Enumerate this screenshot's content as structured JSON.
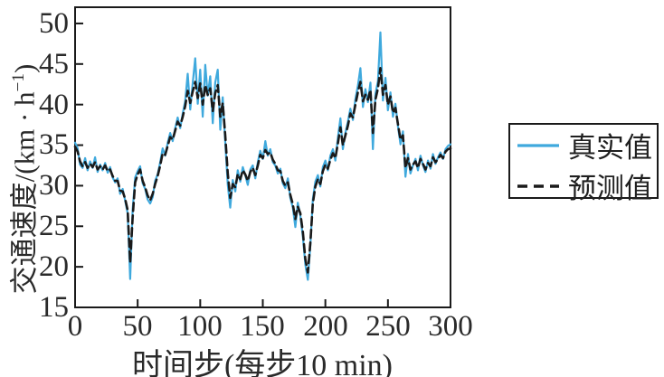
{
  "chart_data": {
    "type": "line",
    "title": "",
    "xlabel": "时间步(每步10 min)",
    "ylabel_main": "交通速度/(km · h",
    "ylabel_sup": "−1",
    "ylabel_close": ")",
    "xlim": [
      0,
      300
    ],
    "ylim": [
      15,
      52
    ],
    "grid": false,
    "legend_position": "right-outside",
    "axis_color": "#1a1a1a",
    "xticks": [
      0,
      50,
      100,
      150,
      200,
      250,
      300
    ],
    "yticks": [
      15,
      20,
      25,
      30,
      35,
      40,
      45,
      50
    ],
    "xtick_labels": [
      "0",
      "50",
      "100",
      "150",
      "200",
      "250",
      "300"
    ],
    "ytick_labels": [
      "15",
      "20",
      "25",
      "30",
      "35",
      "40",
      "45",
      "50"
    ],
    "x_start": 0,
    "x_step": 2,
    "series": [
      {
        "name": "真实值",
        "key": "true-value",
        "color": "#3fa9dd",
        "width": 2.2,
        "dash": "",
        "values": [
          35.3,
          34.6,
          32.6,
          32.2,
          33.4,
          31.9,
          33.0,
          32.2,
          33.5,
          31.7,
          32.6,
          31.9,
          32.8,
          31.6,
          32.3,
          31.0,
          30.4,
          30.9,
          29.0,
          29.6,
          28.2,
          26.6,
          18.5,
          27.0,
          31.0,
          31.8,
          32.4,
          30.3,
          29.6,
          28.3,
          27.8,
          28.6,
          30.6,
          31.4,
          32.9,
          34.6,
          33.7,
          35.3,
          36.5,
          35.5,
          37.1,
          38.4,
          37.1,
          38.9,
          40.4,
          43.8,
          39.4,
          42.6,
          45.7,
          40.1,
          44.3,
          38.5,
          44.9,
          41.1,
          43.5,
          37.7,
          42.7,
          44.3,
          36.9,
          40.9,
          35.3,
          30.1,
          27.3,
          30.7,
          29.3,
          31.9,
          30.5,
          32.3,
          31.3,
          30.1,
          32.0,
          32.5,
          30.9,
          32.9,
          34.3,
          33.3,
          35.5,
          33.7,
          34.5,
          32.9,
          32.5,
          31.5,
          32.1,
          30.3,
          29.7,
          30.9,
          28.5,
          27.3,
          24.9,
          27.9,
          26.3,
          23.7,
          20.3,
          18.4,
          22.7,
          28.3,
          30.5,
          31.3,
          29.9,
          32.3,
          33.1,
          31.9,
          33.7,
          34.5,
          33.1,
          35.9,
          38.3,
          34.5,
          36.5,
          37.9,
          39.5,
          38.1,
          40.7,
          42.3,
          44.5,
          39.7,
          41.9,
          40.3,
          42.7,
          34.5,
          41.3,
          42.9,
          48.9,
          40.5,
          43.3,
          39.3,
          41.5,
          38.5,
          40.1,
          37.3,
          35.1,
          36.7,
          31.1,
          33.9,
          31.5,
          32.5,
          33.3,
          31.9,
          33.7,
          32.5,
          31.7,
          33.1,
          32.1,
          33.9,
          32.7,
          33.5,
          34.1,
          33.3,
          34.5,
          34.9,
          35.1
        ]
      },
      {
        "name": "预测值",
        "key": "predicted-value",
        "color": "#1a1a1a",
        "width": 2.6,
        "dash": "9,5",
        "values": [
          34.8,
          34.2,
          33.0,
          32.4,
          32.9,
          32.2,
          32.7,
          32.3,
          32.9,
          32.0,
          32.4,
          32.0,
          32.5,
          31.8,
          32.0,
          31.2,
          30.6,
          30.6,
          29.4,
          29.3,
          28.4,
          27.0,
          20.5,
          26.0,
          30.4,
          31.4,
          32.0,
          30.6,
          29.8,
          28.8,
          28.2,
          29.0,
          30.2,
          31.2,
          32.5,
          34.0,
          33.8,
          34.9,
          36.0,
          35.7,
          36.8,
          37.9,
          37.4,
          38.5,
          39.8,
          41.7,
          40.2,
          41.6,
          42.8,
          40.8,
          42.6,
          40.0,
          42.4,
          41.2,
          42.0,
          39.2,
          41.4,
          42.4,
          38.5,
          40.2,
          36.2,
          31.5,
          28.5,
          30.2,
          29.8,
          31.4,
          30.8,
          31.9,
          31.4,
          30.6,
          31.7,
          32.2,
          31.3,
          32.5,
          33.8,
          33.4,
          34.4,
          33.9,
          34.1,
          33.2,
          32.7,
          31.9,
          31.8,
          30.6,
          30.0,
          30.4,
          28.9,
          27.7,
          25.9,
          27.4,
          26.6,
          24.3,
          21.0,
          19.3,
          23.0,
          27.8,
          29.9,
          30.8,
          30.2,
          31.8,
          32.6,
          32.1,
          33.2,
          34.0,
          33.4,
          35.2,
          37.2,
          35.0,
          36.2,
          37.4,
          38.9,
          38.4,
          40.0,
          41.5,
          42.8,
          40.4,
          41.2,
          40.6,
          41.8,
          36.5,
          40.6,
          42.0,
          44.5,
          41.2,
          42.4,
          40.0,
          41.0,
          39.0,
          39.6,
          37.6,
          35.7,
          36.2,
          32.2,
          33.4,
          32.0,
          32.6,
          33.0,
          32.2,
          33.3,
          32.7,
          32.0,
          32.8,
          32.4,
          33.5,
          32.9,
          33.3,
          33.8,
          33.4,
          34.2,
          34.5,
          34.6
        ]
      }
    ]
  }
}
